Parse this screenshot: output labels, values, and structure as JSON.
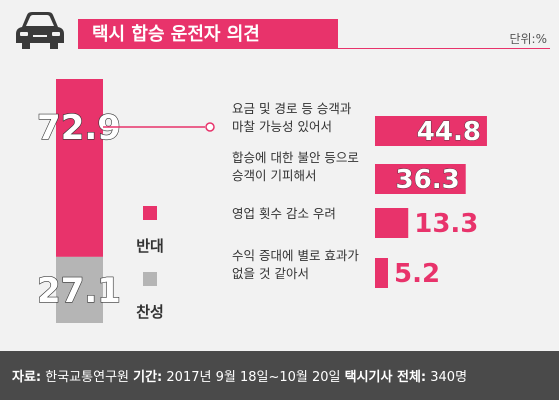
{
  "title": "택시 합승 운전자 의견",
  "unit": "단위:%",
  "footer": {
    "source_label": "자료:",
    "source_value": "한국교통연구원",
    "period_label": "기간:",
    "period_value": "2017년 9월 18일~10월 20일",
    "sample_label": "택시기사 전체:",
    "sample_value": "340명"
  },
  "colors": {
    "accent": "#e8336b",
    "gray": "#b5b5b5",
    "footer_bg": "#4a4a4a"
  },
  "icon": "car-icon",
  "chart_data": [
    {
      "type": "bar",
      "orientation": "vertical-stacked",
      "series": [
        {
          "name": "반대",
          "value": 72.9,
          "color": "#e8336b"
        },
        {
          "name": "찬성",
          "value": 27.1,
          "color": "#b5b5b5"
        }
      ]
    },
    {
      "type": "bar",
      "orientation": "horizontal",
      "categories": [
        "요금 및 경로 등 승객과 마찰 가능성 있어서",
        "합승에 대한 불안 등으로 승객이 기피해서",
        "영업 횟수 감소 우려",
        "수익 증대에 별로 효과가 없을 것 같아서"
      ],
      "category_lines": [
        [
          "요금 및 경로 등 승객과",
          "마찰 가능성 있어서"
        ],
        [
          "합승에 대한 불안 등으로",
          "승객이 기피해서"
        ],
        [
          "영업 횟수 감소 우려"
        ],
        [
          "수익 증대에 별로 효과가",
          "없을 것 같아서"
        ]
      ],
      "values": [
        44.8,
        36.3,
        13.3,
        5.2
      ],
      "value_labels": [
        "44.8",
        "36.3",
        "13.3",
        "5.2"
      ]
    }
  ]
}
